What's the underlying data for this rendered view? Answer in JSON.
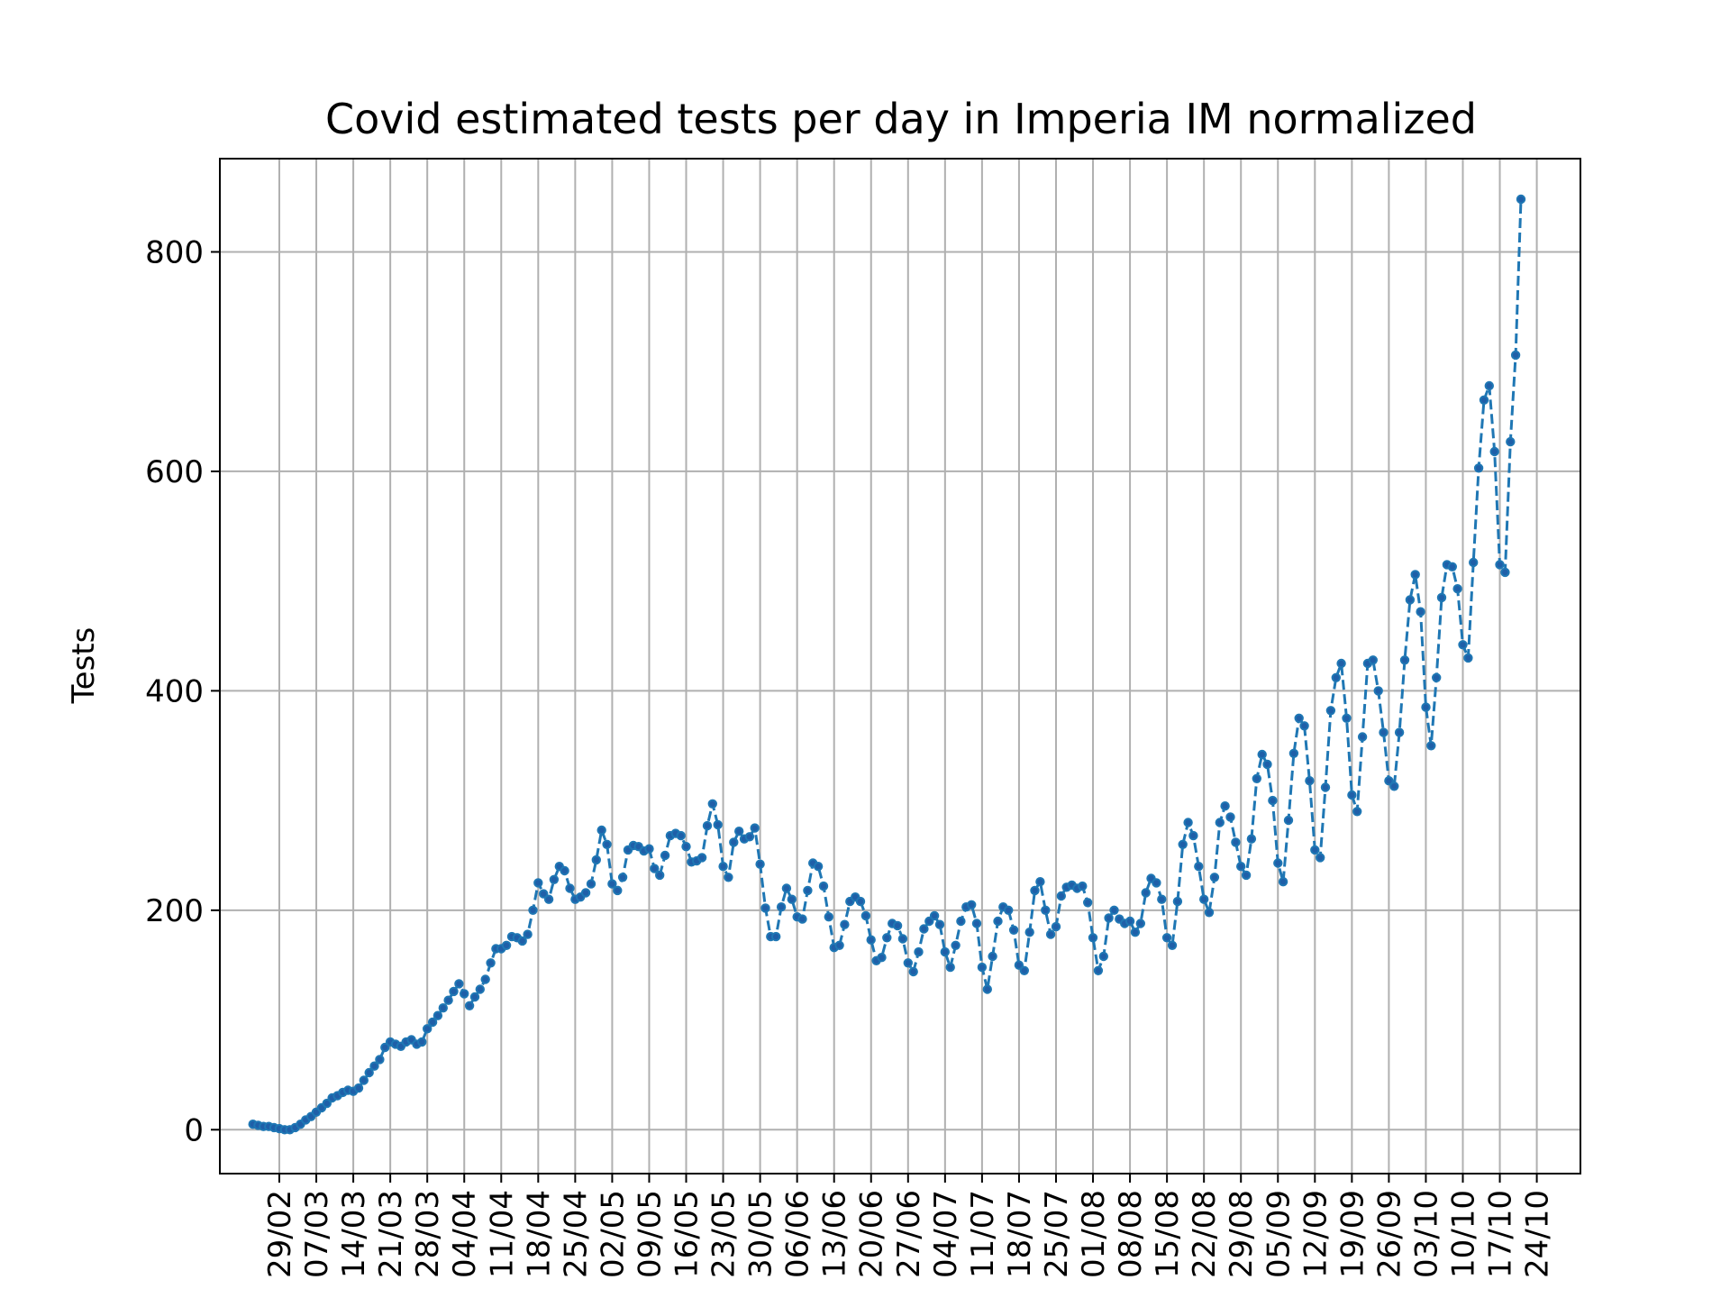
{
  "chart_data": {
    "type": "line",
    "title": "Covid estimated tests per day in Imperia IM normalized",
    "xlabel": "",
    "ylabel": "Tests",
    "ylim": [
      -40,
      885
    ],
    "yticks": [
      0,
      200,
      400,
      600,
      800
    ],
    "grid": true,
    "x_tick_labels": [
      "29/02",
      "07/03",
      "14/03",
      "21/03",
      "28/03",
      "04/04",
      "11/04",
      "18/04",
      "25/04",
      "02/05",
      "09/05",
      "16/05",
      "23/05",
      "30/05",
      "06/06",
      "13/06",
      "20/06",
      "27/06",
      "04/07",
      "11/07",
      "18/07",
      "25/07",
      "01/08",
      "08/08",
      "15/08",
      "22/08",
      "29/08",
      "05/09",
      "12/09",
      "19/09",
      "26/09",
      "03/10",
      "10/10",
      "17/10",
      "24/10"
    ],
    "x_start": "2020-02-24",
    "series": [
      {
        "name": "",
        "color": "#1f77b4",
        "values": [
          5,
          4,
          3,
          3,
          2,
          1,
          0,
          0,
          2,
          5,
          9,
          12,
          16,
          20,
          24,
          29,
          31,
          34,
          36,
          35,
          38,
          45,
          52,
          58,
          64,
          75,
          80,
          78,
          76,
          80,
          82,
          78,
          80,
          92,
          98,
          104,
          111,
          118,
          126,
          133,
          124,
          113,
          121,
          128,
          137,
          152,
          165,
          165,
          168,
          176,
          175,
          172,
          178,
          200,
          225,
          215,
          210,
          228,
          240,
          236,
          220,
          210,
          212,
          216,
          224,
          246,
          273,
          260,
          224,
          218,
          230,
          255,
          259,
          258,
          254,
          256,
          238,
          232,
          250,
          268,
          270,
          268,
          258,
          244,
          245,
          248,
          277,
          297,
          278,
          240,
          230,
          262,
          272,
          265,
          267,
          275,
          242,
          202,
          176,
          176,
          203,
          220,
          210,
          194,
          192,
          218,
          243,
          240,
          222,
          194,
          166,
          168,
          187,
          208,
          212,
          208,
          195,
          173,
          154,
          157,
          175,
          188,
          186,
          174,
          152,
          144,
          162,
          183,
          190,
          195,
          187,
          162,
          148,
          168,
          190,
          203,
          205,
          188,
          148,
          128,
          158,
          190,
          203,
          200,
          182,
          150,
          145,
          180,
          218,
          226,
          200,
          178,
          185,
          213,
          221,
          223,
          220,
          222,
          207,
          175,
          145,
          158,
          193,
          200,
          192,
          188,
          190,
          180,
          188,
          216,
          229,
          225,
          210,
          175,
          168,
          208,
          260,
          280,
          268,
          240,
          210,
          198,
          230,
          280,
          295,
          285,
          262,
          240,
          232,
          265,
          320,
          342,
          333,
          300,
          243,
          226,
          282,
          343,
          375,
          368,
          318,
          255,
          248,
          312,
          382,
          412,
          425,
          375,
          305,
          290,
          358,
          425,
          428,
          400,
          362,
          318,
          313,
          362,
          428,
          483,
          506,
          472,
          385,
          350,
          412,
          485,
          515,
          513,
          493,
          442,
          430,
          517,
          603,
          665,
          678,
          618,
          515,
          508,
          627,
          706,
          848
        ]
      }
    ]
  }
}
